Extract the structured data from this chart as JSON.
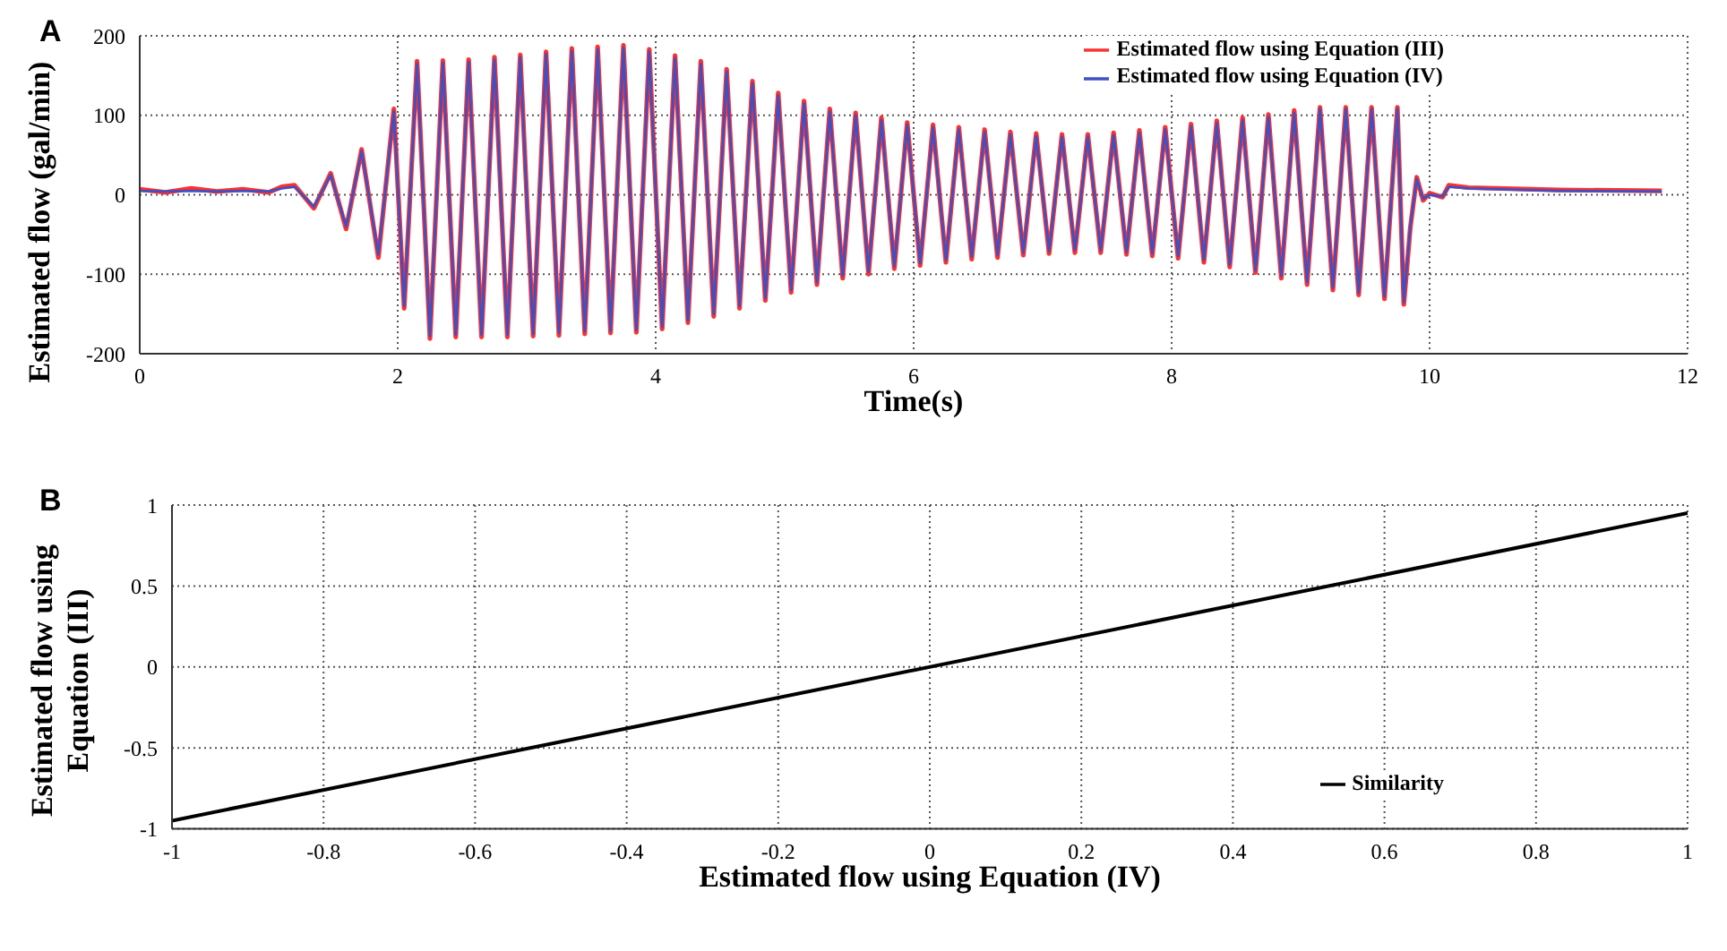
{
  "chart_data": [
    {
      "type": "line",
      "annotations": [
        "A"
      ],
      "xlabel": "Time(s)",
      "ylabel": "Estimated flow (gal/min)",
      "xlim": [
        0,
        12
      ],
      "xticks": [
        0,
        2,
        4,
        6,
        8,
        10,
        12
      ],
      "ylim": [
        -200,
        200
      ],
      "yticks": [
        -200,
        -100,
        0,
        100,
        200
      ],
      "grid": true,
      "legend": "top right",
      "line_style": "solid",
      "series": [
        {
          "name": "Estimated flow using Equation (III)",
          "color": "#ff3030",
          "x": [
            0,
            0.2,
            0.4,
            0.6,
            0.8,
            1.0,
            1.1,
            1.2,
            1.35,
            1.48,
            1.6,
            1.72,
            1.85,
            1.97,
            2.05,
            2.15,
            2.25,
            2.35,
            2.45,
            2.55,
            2.65,
            2.75,
            2.85,
            2.95,
            3.05,
            3.15,
            3.25,
            3.35,
            3.45,
            3.55,
            3.65,
            3.75,
            3.85,
            3.95,
            4.05,
            4.15,
            4.25,
            4.35,
            4.45,
            4.55,
            4.65,
            4.75,
            4.85,
            4.95,
            5.05,
            5.15,
            5.25,
            5.35,
            5.45,
            5.55,
            5.65,
            5.75,
            5.85,
            5.95,
            6.05,
            6.15,
            6.25,
            6.35,
            6.45,
            6.55,
            6.65,
            6.75,
            6.85,
            6.95,
            7.05,
            7.15,
            7.25,
            7.35,
            7.45,
            7.55,
            7.65,
            7.75,
            7.85,
            7.95,
            8.05,
            8.15,
            8.25,
            8.35,
            8.45,
            8.55,
            8.65,
            8.75,
            8.85,
            8.95,
            9.05,
            9.15,
            9.25,
            9.35,
            9.45,
            9.55,
            9.65,
            9.75,
            9.8,
            9.85,
            9.9,
            9.95,
            10.0,
            10.1,
            10.15,
            10.3,
            11.0,
            11.8
          ],
          "values": [
            7,
            3,
            8,
            4,
            7,
            3,
            10,
            12,
            -17,
            27,
            -43,
            57,
            -79,
            108,
            -143,
            168,
            -181,
            169,
            -179,
            170,
            -179,
            173,
            -179,
            176,
            -178,
            180,
            -177,
            184,
            -175,
            186,
            -174,
            188,
            -173,
            183,
            -169,
            175,
            -161,
            168,
            -153,
            158,
            -143,
            143,
            -133,
            128,
            -123,
            118,
            -113,
            108,
            -105,
            103,
            -100,
            97,
            -93,
            91,
            -89,
            88,
            -85,
            85,
            -81,
            82,
            -79,
            79,
            -76,
            77,
            -74,
            76,
            -73,
            76,
            -73,
            78,
            -75,
            81,
            -77,
            85,
            -80,
            89,
            -85,
            93,
            -91,
            97,
            -98,
            101,
            -105,
            106,
            -113,
            110,
            -120,
            110,
            -126,
            110,
            -131,
            110,
            -138,
            -42,
            22,
            -7,
            2,
            -3,
            12,
            9,
            6,
            5
          ]
        },
        {
          "name": "Estimated flow using Equation (IV)",
          "color": "#4050c0",
          "x": [
            0,
            0.2,
            0.4,
            0.6,
            0.8,
            1.0,
            1.1,
            1.2,
            1.35,
            1.48,
            1.6,
            1.72,
            1.85,
            1.97,
            2.05,
            2.15,
            2.25,
            2.35,
            2.45,
            2.55,
            2.65,
            2.75,
            2.85,
            2.95,
            3.05,
            3.15,
            3.25,
            3.35,
            3.45,
            3.55,
            3.65,
            3.75,
            3.85,
            3.95,
            4.05,
            4.15,
            4.25,
            4.35,
            4.45,
            4.55,
            4.65,
            4.75,
            4.85,
            4.95,
            5.05,
            5.15,
            5.25,
            5.35,
            5.45,
            5.55,
            5.65,
            5.75,
            5.85,
            5.95,
            6.05,
            6.15,
            6.25,
            6.35,
            6.45,
            6.55,
            6.65,
            6.75,
            6.85,
            6.95,
            7.05,
            7.15,
            7.25,
            7.35,
            7.45,
            7.55,
            7.65,
            7.75,
            7.85,
            7.95,
            8.05,
            8.15,
            8.25,
            8.35,
            8.45,
            8.55,
            8.65,
            8.75,
            8.85,
            8.95,
            9.05,
            9.15,
            9.25,
            9.35,
            9.45,
            9.55,
            9.65,
            9.75,
            9.8,
            9.85,
            9.9,
            9.95,
            10.0,
            10.1,
            10.15,
            10.3,
            11.0,
            11.8
          ],
          "values": [
            5,
            4,
            5,
            4,
            5,
            4,
            8,
            10,
            -15,
            25,
            -40,
            55,
            -75,
            105,
            -140,
            165,
            -178,
            166,
            -176,
            167,
            -176,
            170,
            -176,
            173,
            -175,
            177,
            -174,
            181,
            -172,
            183,
            -171,
            185,
            -170,
            180,
            -166,
            172,
            -158,
            165,
            -150,
            155,
            -140,
            140,
            -130,
            125,
            -120,
            115,
            -110,
            105,
            -102,
            100,
            -97,
            94,
            -90,
            88,
            -86,
            85,
            -82,
            82,
            -78,
            79,
            -76,
            76,
            -73,
            74,
            -71,
            73,
            -70,
            73,
            -70,
            75,
            -72,
            78,
            -74,
            82,
            -77,
            86,
            -82,
            90,
            -88,
            94,
            -95,
            98,
            -102,
            103,
            -110,
            108,
            -117,
            108,
            -123,
            108,
            -128,
            108,
            -135,
            -40,
            20,
            -5,
            0,
            -2,
            10,
            8,
            5,
            4
          ]
        }
      ]
    },
    {
      "type": "line",
      "annotations": [
        "B"
      ],
      "xlabel": "Estimated flow using Equation (IV)",
      "ylabel": "Estimated flow using Equation (III)",
      "xlim": [
        -1,
        1
      ],
      "xticks": [
        -1,
        -0.8,
        -0.6,
        -0.4,
        -0.2,
        0,
        0.2,
        0.4,
        0.6,
        0.8,
        1
      ],
      "ylim": [
        -1,
        1
      ],
      "yticks": [
        -1,
        -0.5,
        0,
        0.5,
        1
      ],
      "grid": true,
      "legend": "bottom right",
      "line_style": "solid",
      "series": [
        {
          "name": "Similarity",
          "color": "#000000",
          "x": [
            -1,
            1
          ],
          "values": [
            -0.95,
            0.95
          ]
        }
      ]
    }
  ]
}
